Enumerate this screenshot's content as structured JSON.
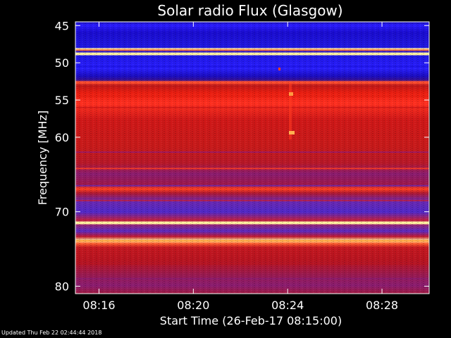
{
  "chart_data": {
    "type": "heatmap",
    "title": "Solar radio Flux (Glasgow)",
    "xlabel": "Start Time (26-Feb-17 08:15:00)",
    "ylabel": "Frequency [MHz]",
    "x_tick_labels": [
      "08:16",
      "08:20",
      "08:24",
      "08:28"
    ],
    "x_tick_minutes": [
      1,
      5,
      9,
      13
    ],
    "xlim_minutes": [
      0,
      15
    ],
    "y_tick_labels": [
      "45",
      "50",
      "55",
      "60",
      "70",
      "80"
    ],
    "y_tick_values": [
      45,
      50,
      55,
      60,
      70,
      80
    ],
    "ylim": [
      44.5,
      81
    ],
    "band_frequencies": [
      45.0,
      48.8,
      50.5,
      52.7,
      54.5,
      56.0,
      59.5,
      62.0,
      64.2,
      66.5,
      68.5,
      71.5,
      73.9,
      77.0,
      79.0
    ],
    "band_colors": [
      "#2a1cff",
      "#fff0a0",
      "#1a10e0",
      "#ff5030",
      "#e81d10",
      "#d01818",
      "#c81a1a",
      "#9a1a6a",
      "#ff4020",
      "#6a28b0",
      "#c02040",
      "#fff0a0",
      "#ff9a30",
      "#b81420",
      "#8a1c70"
    ]
  },
  "footer": {
    "updated": "Updated Thu Feb 22 02:44:44 2018"
  }
}
